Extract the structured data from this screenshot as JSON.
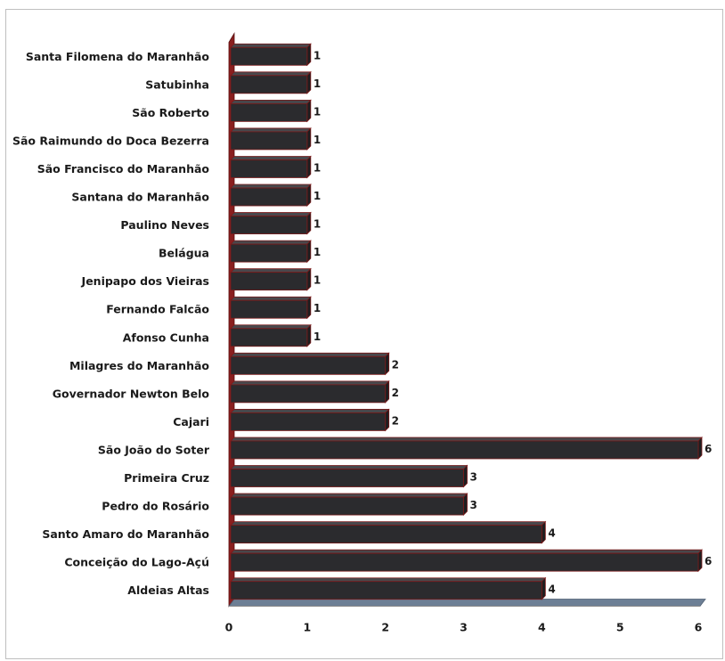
{
  "colors": {
    "bar_front": "#2b2b2e",
    "bar_top": "#48484c",
    "bar_outline": "#7a1a1a",
    "wall": "#8a1f1f",
    "floor": "#6d7f95"
  },
  "chart_data": {
    "type": "bar",
    "orientation": "horizontal",
    "style": "3d",
    "categories": [
      "Santa Filomena do Maranhão",
      "Satubinha",
      "São Roberto",
      "São Raimundo do Doca Bezerra",
      "São Francisco do Maranhão",
      "Santana do Maranhão",
      "Paulino Neves",
      "Belágua",
      "Jenipapo dos Vieiras",
      "Fernando Falcão",
      "Afonso Cunha",
      "Milagres do Maranhão",
      "Governador Newton Belo",
      "Cajari",
      "São João do Soter",
      "Primeira Cruz",
      "Pedro do Rosário",
      "Santo Amaro do Maranhão",
      "Conceição do Lago-Açú",
      "Aldeias Altas"
    ],
    "values": [
      1,
      1,
      1,
      1,
      1,
      1,
      1,
      1,
      1,
      1,
      1,
      2,
      2,
      2,
      6,
      3,
      3,
      4,
      6,
      4
    ],
    "x_ticks": [
      "0",
      "1",
      "2",
      "3",
      "4",
      "5",
      "6"
    ],
    "xlim": [
      0,
      6
    ],
    "grid": false,
    "legend": "none",
    "title": "",
    "xlabel": "",
    "ylabel": ""
  }
}
